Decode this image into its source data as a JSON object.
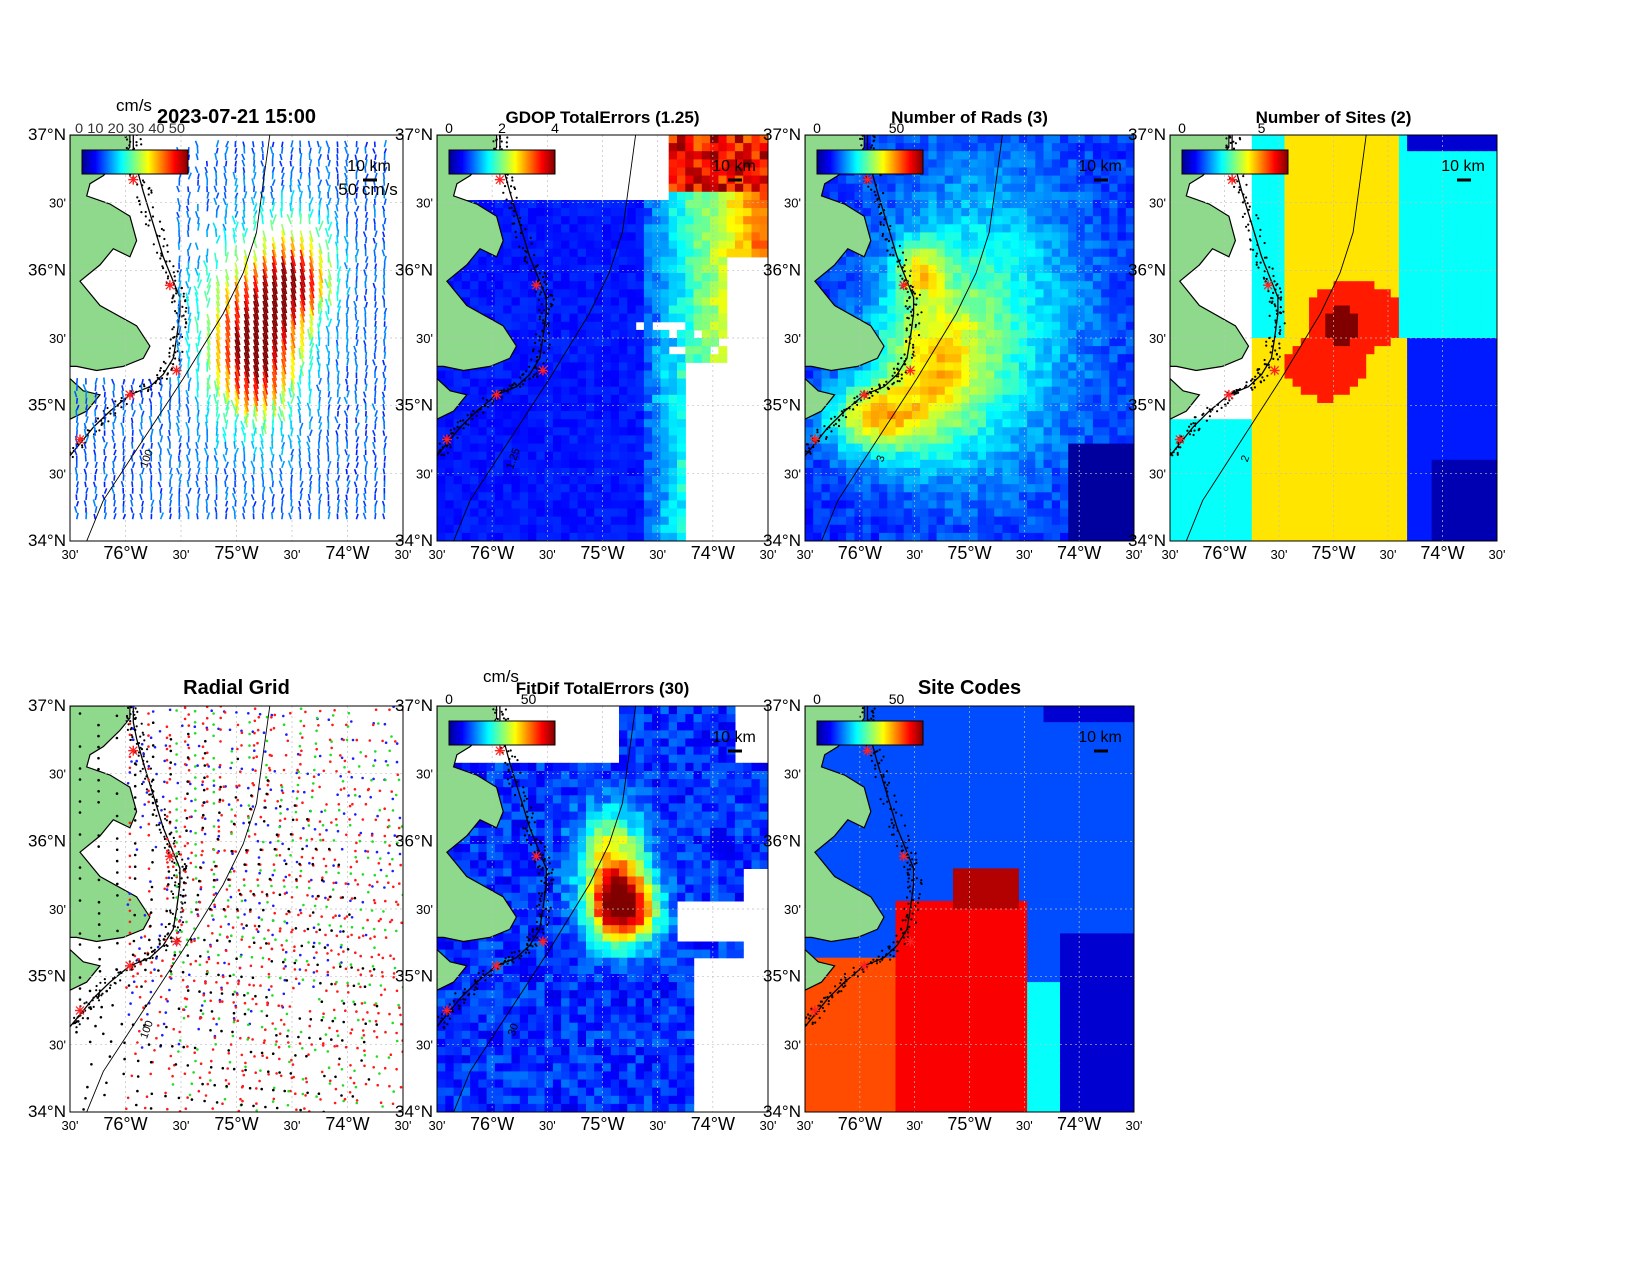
{
  "colors": {
    "land": "#8fd98c",
    "site_marker": "#ff2020",
    "axis": "#000000",
    "grid": "#bfbfbf"
  },
  "colormap_stops": [
    "#00008f",
    "#0000ff",
    "#0080ff",
    "#00ffff",
    "#80ff80",
    "#ffff00",
    "#ff8000",
    "#ff0000",
    "#800000"
  ],
  "axes": {
    "lat_labels": [
      "37°N",
      "30'",
      "36°N",
      "30'",
      "35°N",
      "30'",
      "34°N"
    ],
    "lon_labels": [
      "30'",
      "76°W",
      "30'",
      "75°W",
      "30'",
      "74°W",
      "30'"
    ],
    "scale_bar_label": "10 km"
  },
  "panels": [
    {
      "id": "totals",
      "title": "2023-07-21 15:00",
      "units_label": "cm/s",
      "colorbar_ticks": [],
      "overlap_text": "0 10 20 30 40 50",
      "legend_vector_label": "50 cm/s",
      "field": "vectors",
      "contour_label": "100"
    },
    {
      "id": "gdop",
      "title": "GDOP TotalErrors (1.25)",
      "colorbar_ticks": [
        "0",
        "2",
        "4"
      ],
      "field": "gdop",
      "contour_label": "1.25"
    },
    {
      "id": "nrads",
      "title": "Number of Rads (3)",
      "colorbar_ticks": [
        "0",
        "50"
      ],
      "field": "nrads",
      "contour_label": "3"
    },
    {
      "id": "nsites",
      "title": "Number of Sites (2)",
      "colorbar_ticks": [
        "0",
        "5"
      ],
      "field": "nsites",
      "contour_label": "2"
    },
    {
      "id": "radgrid",
      "title": "Radial Grid",
      "colorbar_ticks": [],
      "field": "radgrid",
      "contour_label": "100"
    },
    {
      "id": "fitdif",
      "title": "FitDif TotalErrors (30)",
      "units_label": "cm/s",
      "colorbar_ticks": [
        "0",
        "50"
      ],
      "field": "fitdif",
      "contour_label": "30"
    },
    {
      "id": "sitecodes",
      "title": "Site Codes",
      "colorbar_ticks": [
        "0",
        "50"
      ],
      "field": "sitecodes",
      "contour_label": ""
    }
  ]
}
